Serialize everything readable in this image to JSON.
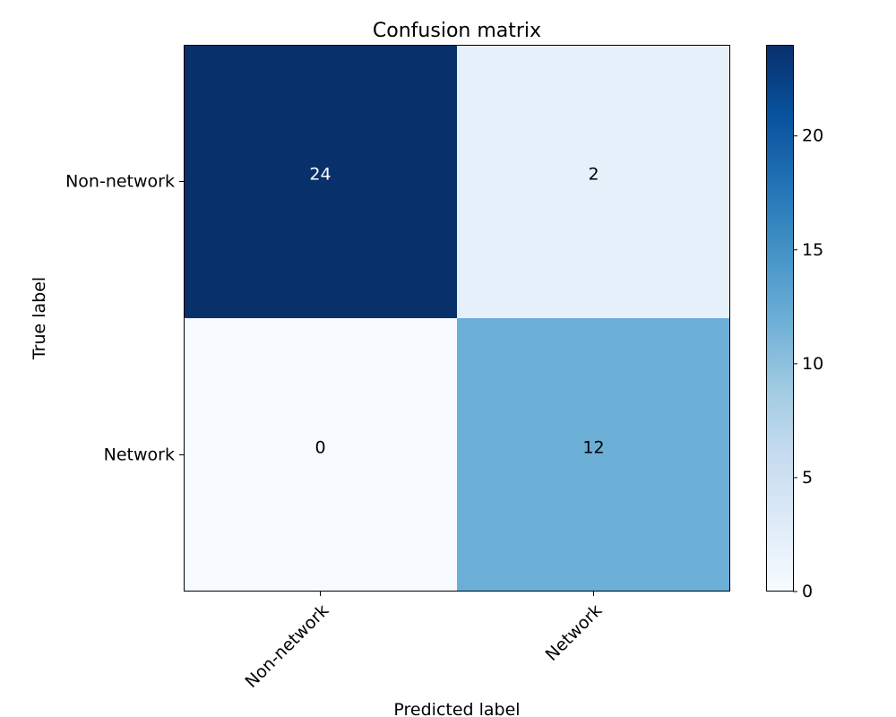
{
  "chart_data": {
    "type": "heatmap",
    "title": "Confusion matrix",
    "xlabel": "Predicted label",
    "ylabel": "True label",
    "x_categories": [
      "Non-network",
      "Network"
    ],
    "y_categories": [
      "Non-network",
      "Network"
    ],
    "values": [
      [
        24,
        2
      ],
      [
        0,
        12
      ]
    ],
    "colorscale": "Blues",
    "color_range": [
      0,
      24
    ],
    "colorbar_ticks": [
      0,
      5,
      10,
      15,
      20
    ],
    "colorbar_tick_labels": [
      "0",
      "5",
      "10",
      "15",
      "20"
    ],
    "grid": false,
    "x_tick_rotation_deg": 45
  }
}
